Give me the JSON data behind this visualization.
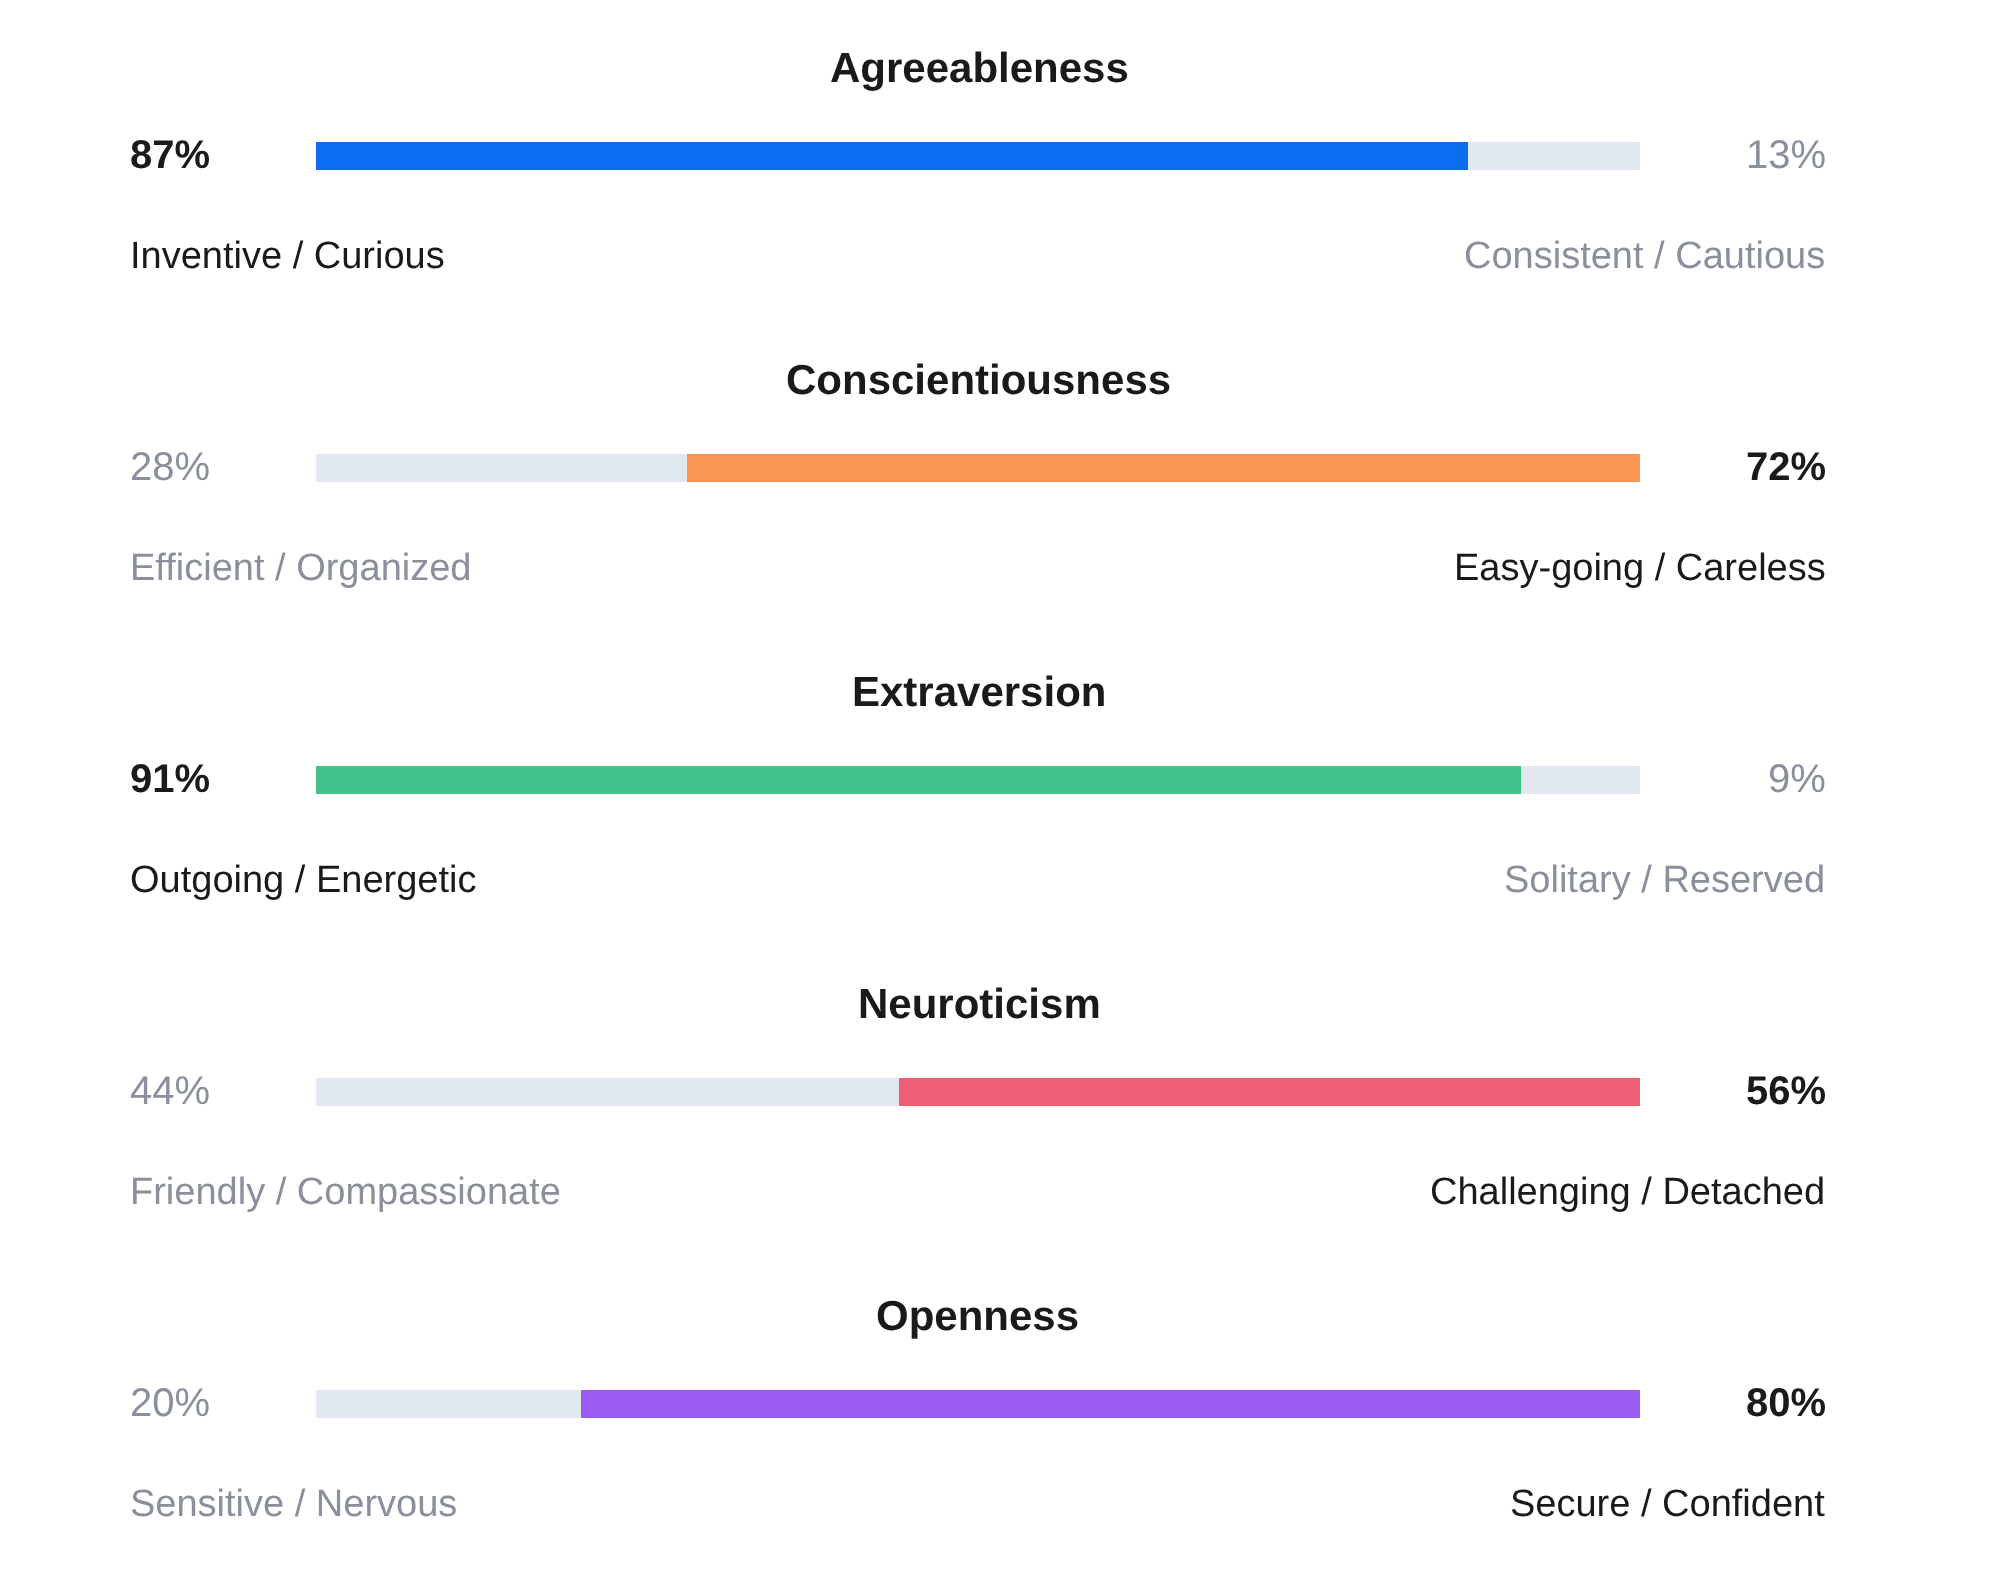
{
  "chart_data": {
    "type": "bar",
    "orientation": "horizontal",
    "stacked": true,
    "categories": [
      "Agreeableness",
      "Conscientiousness",
      "Extraversion",
      "Neuroticism",
      "Openness"
    ],
    "series": [
      {
        "colors": [
          "#0b6cf0",
          "#e2e8f0",
          "#40c48c",
          "#e2e8f0",
          "#e2e8f0"
        ],
        "values": [
          87,
          28,
          91,
          44,
          20
        ],
        "value_labels": [
          "87%",
          "28%",
          "91%",
          "44%",
          "20%"
        ]
      },
      {
        "colors": [
          "#e2e8f0",
          "#fb9552",
          "#e2e8f0",
          "#ef5e74",
          "#9b5cf6"
        ],
        "values": [
          13,
          72,
          9,
          56,
          80
        ],
        "value_labels": [
          "13%",
          "72%",
          "9%",
          "56%",
          "80%"
        ]
      }
    ],
    "annotations": [
      "Inventive / Curious",
      "Consistent / Cautious",
      "Efficient / Organized",
      "Easy-going / Careless",
      "Outgoing / Energetic",
      "Solitary / Reserved",
      "Friendly / Compassionate",
      "Challenging / Detached",
      "Sensitive / Nervous",
      "Secure / Confident"
    ]
  }
}
